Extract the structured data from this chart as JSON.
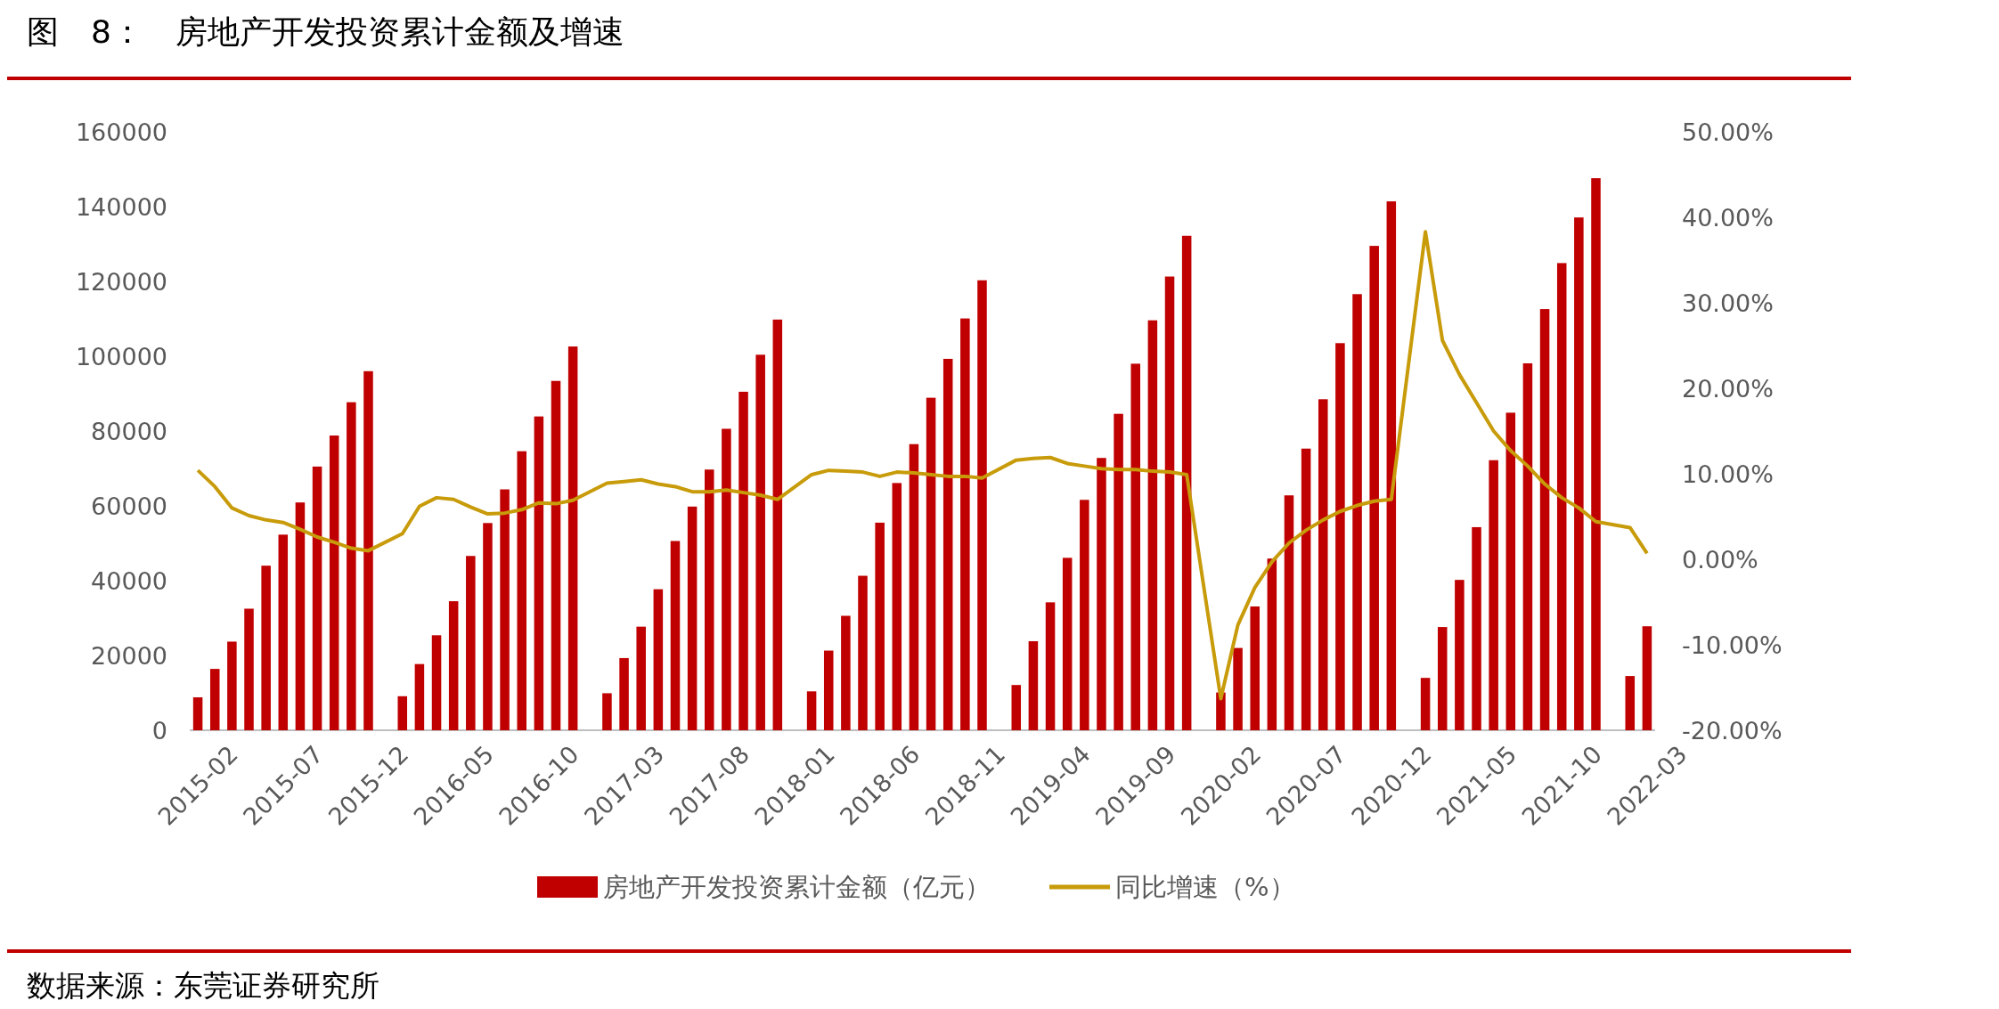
{
  "chart_data": {
    "type": "bar",
    "title": "图　8：　房地产开发投资累计金额及增速",
    "categories": [
      "2015-02",
      null,
      null,
      null,
      null,
      "2015-07",
      null,
      null,
      null,
      null,
      "2015-12",
      null,
      null,
      null,
      null,
      "2016-05",
      null,
      null,
      null,
      null,
      "2016-10",
      null,
      null,
      null,
      null,
      "2017-03",
      null,
      null,
      null,
      null,
      "2017-08",
      null,
      null,
      null,
      null,
      "2018-01",
      null,
      null,
      null,
      null,
      "2018-06",
      null,
      null,
      null,
      null,
      "2018-11",
      null,
      null,
      null,
      null,
      "2019-04",
      null,
      null,
      null,
      null,
      "2019-09",
      null,
      null,
      null,
      null,
      "2020-02",
      null,
      null,
      null,
      null,
      "2020-07",
      null,
      null,
      null,
      null,
      "2020-12",
      null,
      null,
      null,
      null,
      "2021-05",
      null,
      null,
      null,
      null,
      "2021-10",
      null,
      null,
      null,
      null,
      "2022-03"
    ],
    "series": [
      {
        "name": "房地产开发投资累计金额（亿元）",
        "color": "#c00000",
        "values": [
          8800,
          16400,
          23700,
          32500,
          44000,
          52300,
          60900,
          70500,
          78800,
          87700,
          96000,
          null,
          9100,
          17700,
          25400,
          34500,
          46600,
          55400,
          64400,
          74600,
          83900,
          93400,
          102600,
          null,
          9900,
          19300,
          27700,
          37700,
          50600,
          59800,
          69700,
          80600,
          90500,
          100400,
          109800,
          null,
          10400,
          21300,
          30600,
          41300,
          55500,
          66100,
          76500,
          88900,
          99300,
          110100,
          120300,
          null,
          12100,
          23800,
          34200,
          46100,
          61600,
          72800,
          84600,
          98000,
          109600,
          121300,
          132200,
          null,
          10100,
          22000,
          33100,
          45900,
          62800,
          75300,
          88500,
          103500,
          116600,
          129500,
          141400,
          null,
          14000,
          27600,
          40200,
          54300,
          72200,
          84900,
          98100,
          112600,
          124900,
          137100,
          147600,
          null,
          14500,
          27800
        ]
      },
      {
        "name": "同比增速（%）",
        "type": "line",
        "axis": "y2",
        "color": "#c89b0a",
        "values": [
          10.4,
          8.5,
          6.0,
          5.1,
          4.6,
          4.3,
          3.5,
          2.6,
          2.0,
          1.3,
          1.0,
          null,
          3.0,
          6.2,
          7.2,
          7.0,
          6.1,
          5.3,
          5.4,
          5.8,
          6.6,
          6.5,
          6.9,
          null,
          8.9,
          9.1,
          9.3,
          8.8,
          8.5,
          7.9,
          7.9,
          8.1,
          7.8,
          7.5,
          7.0,
          null,
          9.9,
          10.4,
          10.3,
          10.2,
          9.7,
          10.2,
          10.1,
          9.9,
          9.7,
          9.7,
          9.5,
          null,
          11.6,
          11.8,
          11.9,
          11.2,
          10.9,
          10.6,
          10.5,
          10.5,
          10.3,
          10.2,
          9.9,
          null,
          -16.3,
          -7.7,
          -3.3,
          -0.3,
          1.9,
          3.4,
          4.6,
          5.6,
          6.3,
          6.8,
          7.0,
          null,
          38.3,
          25.6,
          21.6,
          18.3,
          15.0,
          12.7,
          10.9,
          8.8,
          7.2,
          6.0,
          4.4,
          null,
          3.7,
          0.7
        ]
      }
    ],
    "ylim": [
      0,
      160000
    ],
    "yticks": [
      0,
      20000,
      40000,
      60000,
      80000,
      100000,
      120000,
      140000,
      160000
    ],
    "y2lim": [
      -20,
      50
    ],
    "y2ticks": [
      {
        "value": -20,
        "label": "-20.00%"
      },
      {
        "value": -10,
        "label": "-10.00%"
      },
      {
        "value": 0,
        "label": "0.00%"
      },
      {
        "value": 10,
        "label": "10.00%"
      },
      {
        "value": 20,
        "label": "20.00%"
      },
      {
        "value": 30,
        "label": "30.00%"
      },
      {
        "value": 40,
        "label": "40.00%"
      },
      {
        "value": 50,
        "label": "50.00%"
      }
    ],
    "legend": "bottom",
    "grid": false,
    "marker": "none",
    "line_style": "solid",
    "annotations": [
      "数据来源：东莞证券研究所"
    ]
  }
}
